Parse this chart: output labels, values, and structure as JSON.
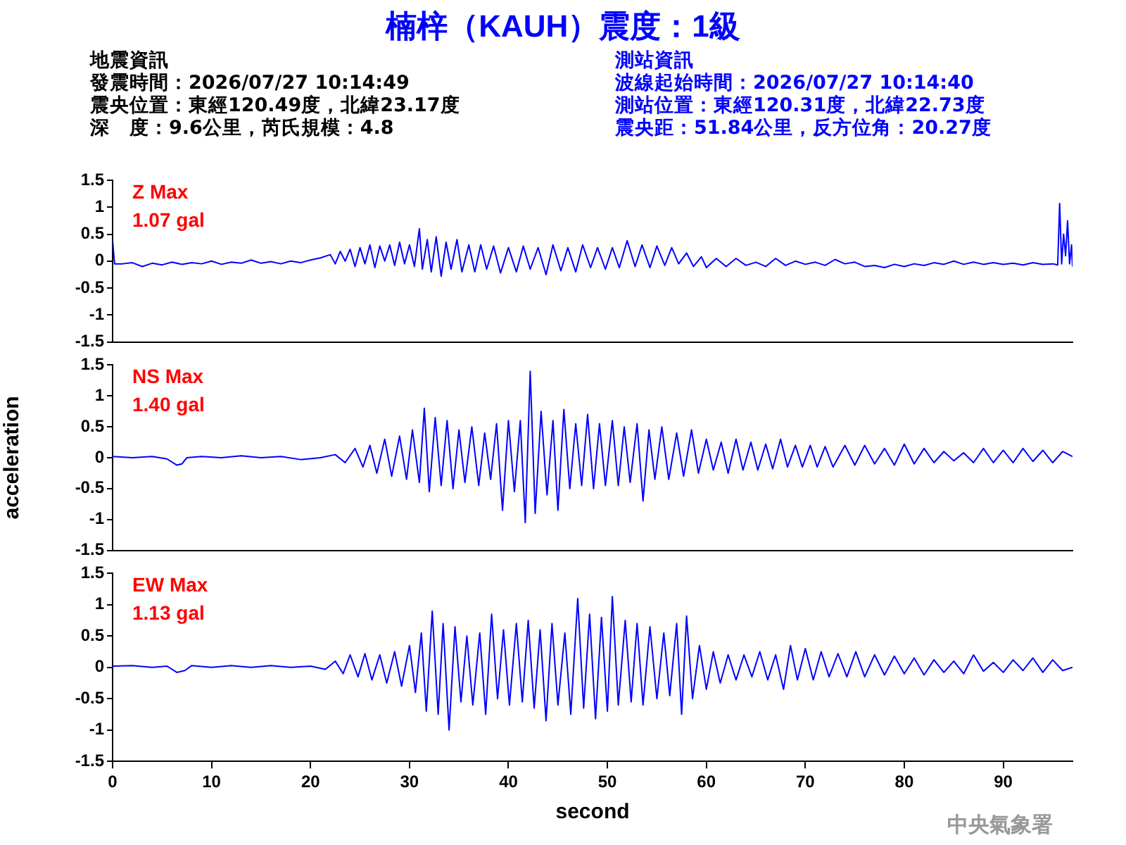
{
  "chart_data": [
    {
      "type": "line",
      "title": "楠梓（KAUH）震度：1級",
      "color": "#0000ff",
      "grid": false,
      "legend": false,
      "tick_labels": "y",
      "marker": "none",
      "line_style": "solid",
      "annotations": [
        "地震資訊",
        "發震時間：2026/07/27 10:14:49",
        "震央位置：東經120.49度，北緯23.17度",
        "深　度：9.6公里，芮氏規模：4.8",
        "測站資訊",
        "波線起始時間：2026/07/27 10:14:40",
        "測站位置：東經120.31度，北緯22.73度",
        "震央距：51.84公里，反方位角：20.27度",
        "Z Max",
        "1.07 gal"
      ],
      "xlim": [
        0,
        97
      ],
      "ylim": [
        -1.5,
        1.5
      ],
      "yticks": [
        -1.5,
        -1,
        -0.5,
        0,
        0.5,
        1,
        1.5
      ],
      "x": [
        0,
        0.2,
        1,
        2,
        3,
        4,
        5,
        6,
        7,
        8,
        9,
        10,
        11,
        12,
        13,
        14,
        15,
        16,
        17,
        18,
        19,
        20,
        21,
        22,
        22.5,
        23,
        23.5,
        24,
        24.5,
        25,
        25.5,
        26,
        26.5,
        27,
        27.5,
        28,
        28.5,
        29,
        29.5,
        30,
        30.5,
        31,
        31.3,
        31.8,
        32.2,
        32.7,
        33.2,
        33.7,
        34.2,
        34.8,
        35.3,
        36,
        36.6,
        37.2,
        37.8,
        38.5,
        39.2,
        40,
        40.8,
        41.5,
        42.2,
        43,
        43.8,
        44.5,
        45.3,
        46,
        46.8,
        47.5,
        48.3,
        49,
        49.8,
        50.5,
        51.2,
        52,
        52.8,
        53.5,
        54.3,
        55,
        55.8,
        56.5,
        57.2,
        58,
        58.7,
        59.5,
        60,
        61,
        62,
        63,
        64,
        65,
        66,
        67,
        68,
        69,
        70,
        71,
        72,
        73,
        74,
        75,
        76,
        77,
        78,
        79,
        80,
        81,
        82,
        83,
        84,
        85,
        86,
        87,
        88,
        89,
        90,
        91,
        92,
        93,
        94,
        95,
        95.5,
        95.7,
        95.9,
        96.1,
        96.3,
        96.5,
        96.7,
        96.9,
        97
      ],
      "values": [
        0.38,
        -0.05,
        -0.05,
        -0.03,
        -0.1,
        -0.04,
        -0.07,
        -0.02,
        -0.06,
        -0.03,
        -0.05,
        0,
        -0.06,
        -0.02,
        -0.04,
        0.02,
        -0.04,
        -0.01,
        -0.05,
        0,
        -0.03,
        0.02,
        0.06,
        0.12,
        -0.05,
        0.18,
        0,
        0.22,
        -0.1,
        0.25,
        -0.05,
        0.3,
        -0.12,
        0.28,
        0,
        0.3,
        -0.08,
        0.35,
        -0.05,
        0.3,
        -0.1,
        0.6,
        -0.15,
        0.4,
        -0.2,
        0.45,
        -0.28,
        0.35,
        -0.15,
        0.4,
        -0.2,
        0.3,
        -0.2,
        0.3,
        -0.15,
        0.28,
        -0.22,
        0.25,
        -0.2,
        0.28,
        -0.15,
        0.25,
        -0.25,
        0.3,
        -0.18,
        0.25,
        -0.2,
        0.3,
        -0.12,
        0.25,
        -0.15,
        0.25,
        -0.12,
        0.38,
        -0.1,
        0.3,
        -0.12,
        0.28,
        -0.08,
        0.25,
        -0.05,
        0.15,
        -0.1,
        0.08,
        -0.12,
        0.05,
        -0.1,
        0.05,
        -0.08,
        -0.02,
        -0.1,
        0.05,
        -0.08,
        0,
        -0.06,
        -0.02,
        -0.08,
        0.03,
        -0.05,
        -0.02,
        -0.1,
        -0.08,
        -0.12,
        -0.06,
        -0.1,
        -0.05,
        -0.08,
        -0.03,
        -0.06,
        0,
        -0.06,
        -0.02,
        -0.06,
        -0.03,
        -0.06,
        -0.04,
        -0.07,
        -0.03,
        -0.06,
        -0.05,
        -0.07,
        1.07,
        -0.05,
        0.5,
        0.1,
        0.75,
        -0.05,
        0.3,
        -0.1
      ]
    },
    {
      "type": "line",
      "ylabel": "acceleration",
      "color": "#0000ff",
      "grid": false,
      "legend": false,
      "tick_labels": "y",
      "marker": "none",
      "line_style": "solid",
      "annotations": [
        "NS Max",
        "1.40 gal"
      ],
      "xlim": [
        0,
        97
      ],
      "ylim": [
        -1.5,
        1.5
      ],
      "yticks": [
        -1.5,
        -1,
        -0.5,
        0,
        0.5,
        1,
        1.5
      ],
      "x": [
        0,
        2,
        4,
        5.5,
        6.5,
        7,
        7.5,
        9,
        11,
        13,
        15,
        17,
        19,
        21,
        22.5,
        23.5,
        24.5,
        25.3,
        26,
        26.7,
        27.5,
        28.2,
        29,
        29.7,
        30.3,
        31,
        31.5,
        32,
        32.6,
        33.2,
        33.8,
        34.4,
        35,
        35.6,
        36.3,
        37,
        37.6,
        38.2,
        38.8,
        39.4,
        40,
        40.6,
        41.2,
        41.7,
        42.2,
        42.7,
        43.3,
        43.9,
        44.5,
        45,
        45.6,
        46.2,
        46.8,
        47.4,
        48,
        48.6,
        49.2,
        49.8,
        50.5,
        51.1,
        51.7,
        52.3,
        53,
        53.6,
        54.2,
        54.8,
        55.5,
        56.2,
        57,
        57.7,
        58.5,
        59.2,
        60,
        60.7,
        61.5,
        62.2,
        63,
        63.7,
        64.5,
        65.2,
        66,
        66.7,
        67.5,
        68.2,
        69,
        69.7,
        70.5,
        71.2,
        72,
        72.8,
        74,
        75,
        76,
        77,
        78,
        79,
        80,
        81,
        82,
        83,
        84,
        85,
        86,
        87,
        88,
        89,
        90,
        91,
        92,
        93,
        94,
        95,
        96,
        97
      ],
      "values": [
        0.02,
        0,
        0.02,
        -0.02,
        -0.12,
        -0.1,
        0,
        0.02,
        0,
        0.03,
        0,
        0.02,
        -0.03,
        0,
        0.05,
        -0.08,
        0.15,
        -0.15,
        0.2,
        -0.25,
        0.3,
        -0.3,
        0.35,
        -0.35,
        0.45,
        -0.4,
        0.8,
        -0.55,
        0.65,
        -0.45,
        0.6,
        -0.5,
        0.45,
        -0.4,
        0.5,
        -0.45,
        0.4,
        -0.35,
        0.55,
        -0.85,
        0.6,
        -0.55,
        0.6,
        -1.05,
        1.4,
        -0.9,
        0.75,
        -0.6,
        0.6,
        -0.85,
        0.78,
        -0.5,
        0.55,
        -0.45,
        0.7,
        -0.5,
        0.55,
        -0.45,
        0.6,
        -0.45,
        0.5,
        -0.4,
        0.55,
        -0.7,
        0.45,
        -0.35,
        0.5,
        -0.35,
        0.4,
        -0.3,
        0.45,
        -0.25,
        0.3,
        -0.2,
        0.25,
        -0.25,
        0.3,
        -0.2,
        0.25,
        -0.2,
        0.22,
        -0.18,
        0.3,
        -0.15,
        0.2,
        -0.15,
        0.2,
        -0.15,
        0.18,
        -0.15,
        0.2,
        -0.12,
        0.2,
        -0.1,
        0.15,
        -0.12,
        0.22,
        -0.1,
        0.15,
        -0.08,
        0.1,
        -0.05,
        0.08,
        -0.08,
        0.15,
        -0.08,
        0.12,
        -0.08,
        0.15,
        -0.06,
        0.12,
        -0.08,
        0.1,
        0.02
      ]
    },
    {
      "type": "line",
      "xlabel": "second",
      "color": "#0000ff",
      "grid": false,
      "legend": false,
      "marker": "none",
      "line_style": "solid",
      "annotations": [
        "EW Max",
        "1.13 gal",
        "中央氣象署"
      ],
      "xlim": [
        0,
        97
      ],
      "xticks": [
        0,
        10,
        20,
        30,
        40,
        50,
        60,
        70,
        80,
        90
      ],
      "ylim": [
        -1.5,
        1.5
      ],
      "yticks": [
        -1.5,
        -1,
        -0.5,
        0,
        0.5,
        1,
        1.5
      ],
      "x": [
        0,
        2,
        4,
        5.5,
        6.5,
        7.3,
        8,
        10,
        12,
        14,
        16,
        18,
        20,
        21.5,
        22.5,
        23.3,
        24,
        24.8,
        25.5,
        26.2,
        27,
        27.7,
        28.5,
        29.2,
        30,
        30.6,
        31.2,
        31.7,
        32.3,
        32.9,
        33.4,
        34,
        34.6,
        35.2,
        35.8,
        36.4,
        37.1,
        37.7,
        38.3,
        38.9,
        39.5,
        40.1,
        40.8,
        41.4,
        42,
        42.6,
        43.2,
        43.8,
        44.4,
        45,
        45.7,
        46.3,
        47,
        47.6,
        48.2,
        48.8,
        49.4,
        50,
        50.5,
        51.1,
        51.8,
        52.4,
        53,
        53.6,
        54.3,
        55,
        55.7,
        56.3,
        57,
        57.5,
        58,
        58.6,
        59.3,
        60,
        60.7,
        61.4,
        62.2,
        63,
        63.8,
        64.6,
        65.4,
        66.2,
        67,
        67.8,
        68.5,
        69.2,
        70,
        70.8,
        71.6,
        72.4,
        73.3,
        74.2,
        75.1,
        76,
        77,
        78,
        79,
        80,
        81,
        82,
        83,
        84,
        85,
        86,
        87,
        88,
        89,
        90,
        91,
        92,
        93,
        94,
        95,
        96,
        97
      ],
      "values": [
        0.02,
        0.03,
        0,
        0.02,
        -0.08,
        -0.05,
        0.03,
        0,
        0.03,
        0,
        0.03,
        0,
        0.02,
        -0.03,
        0.1,
        -0.1,
        0.2,
        -0.15,
        0.22,
        -0.2,
        0.2,
        -0.25,
        0.25,
        -0.3,
        0.35,
        -0.4,
        0.55,
        -0.7,
        0.9,
        -0.75,
        0.7,
        -1,
        0.65,
        -0.55,
        0.5,
        -0.6,
        0.55,
        -0.75,
        0.85,
        -0.5,
        0.6,
        -0.6,
        0.7,
        -0.55,
        0.75,
        -0.65,
        0.6,
        -0.85,
        0.7,
        -0.6,
        0.55,
        -0.75,
        1.1,
        -0.65,
        0.85,
        -0.82,
        0.8,
        -0.7,
        1.13,
        -0.6,
        0.75,
        -0.55,
        0.7,
        -0.6,
        0.65,
        -0.5,
        0.55,
        -0.45,
        0.7,
        -0.75,
        0.82,
        -0.5,
        0.35,
        -0.35,
        0.25,
        -0.25,
        0.2,
        -0.2,
        0.2,
        -0.15,
        0.25,
        -0.2,
        0.2,
        -0.35,
        0.35,
        -0.2,
        0.3,
        -0.2,
        0.25,
        -0.15,
        0.22,
        -0.15,
        0.25,
        -0.15,
        0.2,
        -0.12,
        0.18,
        -0.1,
        0.15,
        -0.12,
        0.12,
        -0.08,
        0.1,
        -0.1,
        0.2,
        -0.06,
        0.08,
        -0.08,
        0.12,
        -0.05,
        0.15,
        -0.08,
        0.12,
        -0.05,
        0
      ]
    }
  ]
}
